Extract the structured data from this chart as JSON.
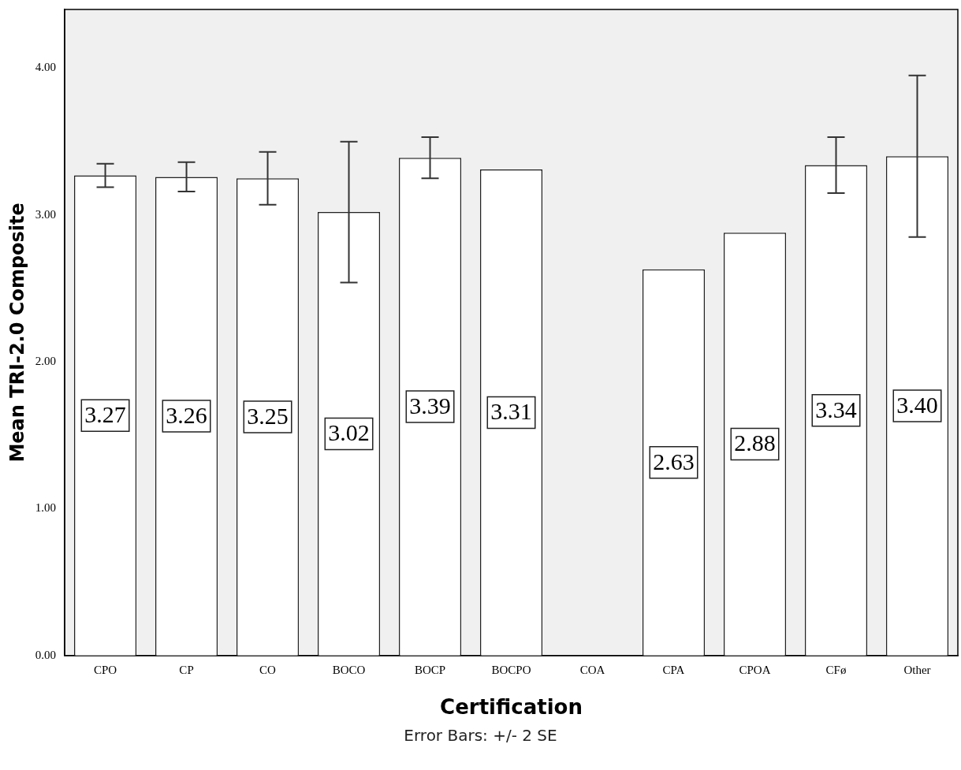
{
  "chart_data": {
    "type": "bar",
    "xlabel": "Certification",
    "ylabel": "Mean TRI-2.0 Composite",
    "categories": [
      "CPO",
      "CP",
      "CO",
      "BOCO",
      "BOCP",
      "BOCPO",
      "COA",
      "CPA",
      "CPOA",
      "CFø",
      "Other"
    ],
    "values": [
      3.27,
      3.26,
      3.25,
      3.02,
      3.39,
      3.31,
      null,
      2.63,
      2.88,
      3.34,
      3.4
    ],
    "errors": [
      0.08,
      0.1,
      0.18,
      0.48,
      0.14,
      null,
      null,
      null,
      null,
      0.19,
      0.55
    ],
    "value_labels": [
      "3.27",
      "3.26",
      "3.25",
      "3.02",
      "3.39",
      "3.31",
      null,
      "2.63",
      "2.88",
      "3.34",
      "3.40"
    ],
    "color": "#ffffff",
    "ylim": [
      0,
      4.4
    ],
    "yticks": [
      {
        "value": 0,
        "label": "0.00"
      },
      {
        "value": 1,
        "label": "1.00"
      },
      {
        "value": 2,
        "label": "2.00"
      },
      {
        "value": 3,
        "label": "3.00"
      },
      {
        "value": 4,
        "label": "4.00"
      }
    ],
    "grid": false,
    "legend": false,
    "annotations": [
      "Error Bars: +/- 2 SE"
    ]
  }
}
